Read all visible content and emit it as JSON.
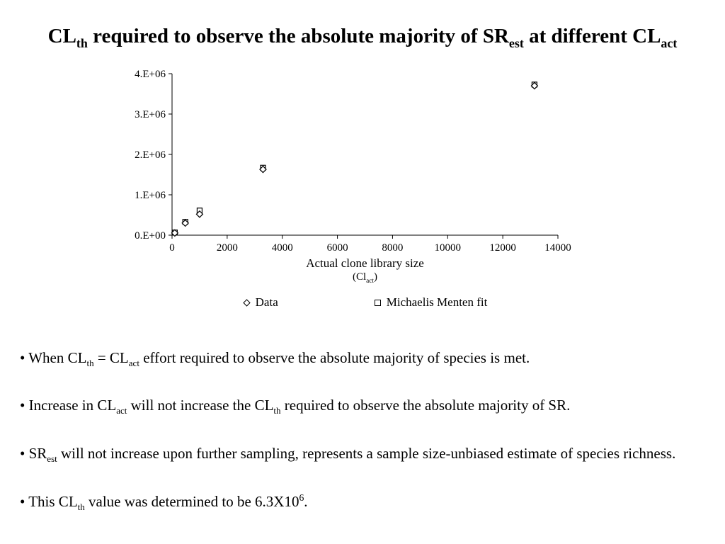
{
  "slide": {
    "title": "CL_{th} required to observe the absolute majority of SR_{est} at different CL_{act}",
    "bullets": [
      "• When CL_{th} = CL_{act} effort required to observe the absolute majority of species is met.",
      "• Increase in CL_{act} will not increase the CL_{th} required to observe the absolute majority of SR.",
      "• SR_{est} will not increase upon further sampling, represents a sample size-unbiased estimate of species richness.",
      "• This CL_{th} value was determined to be 6.3X10^{6}."
    ]
  },
  "chart_data": {
    "type": "scatter",
    "title": "",
    "xlabel": "Actual clone library size",
    "xlabel2": "(Cl_{act})",
    "ylabel": "",
    "xlim": [
      0,
      14000
    ],
    "ylim": [
      0,
      4000000
    ],
    "grid": false,
    "legend_position": "bottom",
    "x_ticks": [
      0,
      2000,
      4000,
      6000,
      8000,
      10000,
      12000,
      14000
    ],
    "x_tick_labels": [
      "0",
      "2000",
      "4000",
      "6000",
      "8000",
      "10000",
      "12000",
      "14000"
    ],
    "y_ticks": [
      0,
      1000000,
      2000000,
      3000000,
      4000000
    ],
    "y_tick_labels": [
      "0.E+00",
      "1.E+06",
      "2.E+06",
      "3.E+06",
      "4.E+06"
    ],
    "series": [
      {
        "name": "Data",
        "marker": "diamond",
        "points": [
          [
            100,
            55000
          ],
          [
            480,
            300000
          ],
          [
            1000,
            520000
          ],
          [
            3300,
            1630000
          ],
          [
            13150,
            3700000
          ]
        ]
      },
      {
        "name": "Michaelis Menten fit",
        "marker": "square",
        "points": [
          [
            100,
            65000
          ],
          [
            480,
            330000
          ],
          [
            1000,
            610000
          ],
          [
            3300,
            1670000
          ],
          [
            13150,
            3730000
          ]
        ]
      }
    ]
  }
}
